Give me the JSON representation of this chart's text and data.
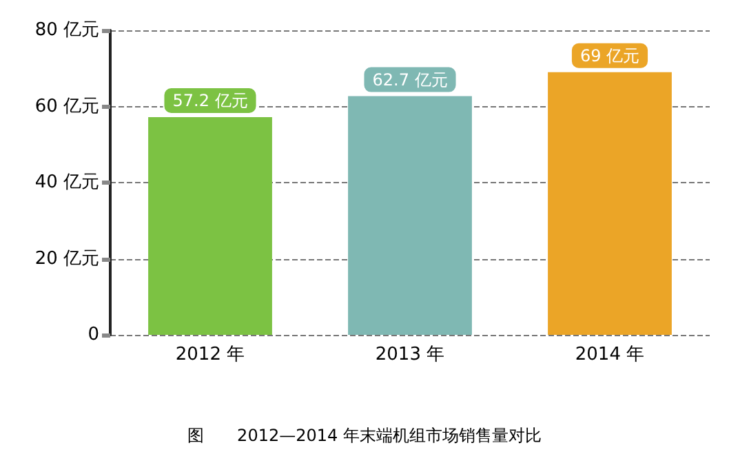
{
  "chart_data": {
    "type": "bar",
    "categories": [
      "2012 年",
      "2013 年",
      "2014 年"
    ],
    "values": [
      57.2,
      62.7,
      69
    ],
    "colors": [
      "#7cc243",
      "#7fb8b3",
      "#eba527"
    ],
    "value_labels": [
      "57.2 亿元",
      "62.7 亿元",
      "69 亿元"
    ],
    "ylim": [
      0,
      80
    ],
    "yticks": [
      {
        "value": 0,
        "label": "0"
      },
      {
        "value": 20,
        "label": "20 亿元"
      },
      {
        "value": 40,
        "label": "40 亿元"
      },
      {
        "value": 60,
        "label": "60 亿元"
      },
      {
        "value": 80,
        "label": "80 亿元"
      }
    ],
    "grid": "y",
    "annotations": [
      "图　　2012—2014 年末端机组市场销售量对比"
    ]
  }
}
